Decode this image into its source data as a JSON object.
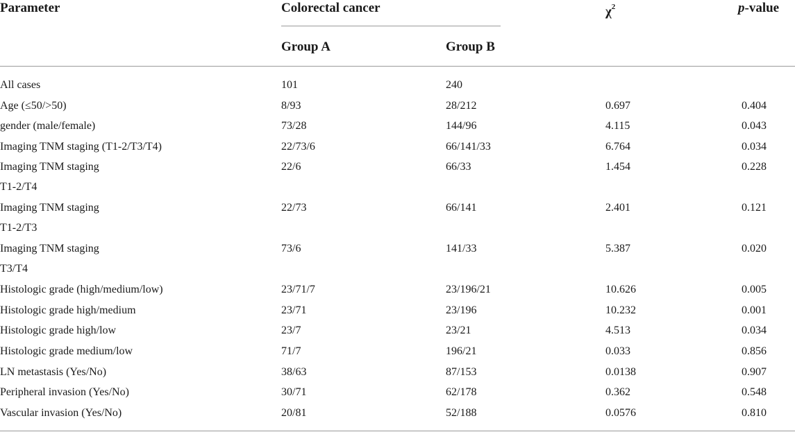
{
  "table": {
    "headers": {
      "parameter": "Parameter",
      "colorectal": "Colorectal cancer",
      "chi_symbol": "χ",
      "chi_sup": "2",
      "p_italic": "p",
      "p_rest": "-value",
      "group_a": "Group A",
      "group_b": "Group B"
    },
    "rows": [
      {
        "param": "All cases",
        "cont": "",
        "a": "101",
        "b": "240",
        "chi": "",
        "p": ""
      },
      {
        "param": "Age (≤50/>50)",
        "cont": "",
        "a": "8/93",
        "b": "28/212",
        "chi": "0.697",
        "p": "0.404"
      },
      {
        "param": "gender (male/female)",
        "cont": "",
        "a": "73/28",
        "b": "144/96",
        "chi": "4.115",
        "p": "0.043"
      },
      {
        "param": "Imaging TNM staging (T1-2/T3/T4)",
        "cont": "",
        "a": "22/73/6",
        "b": "66/141/33",
        "chi": "6.764",
        "p": "0.034"
      },
      {
        "param": "Imaging TNM staging",
        "cont": "T1-2/T4",
        "a": "22/6",
        "b": "66/33",
        "chi": "1.454",
        "p": "0.228"
      },
      {
        "param": "Imaging TNM staging",
        "cont": "T1-2/T3",
        "a": "22/73",
        "b": "66/141",
        "chi": "2.401",
        "p": "0.121"
      },
      {
        "param": "Imaging TNM staging",
        "cont": "T3/T4",
        "a": "73/6",
        "b": "141/33",
        "chi": "5.387",
        "p": "0.020"
      },
      {
        "param": "Histologic grade (high/medium/low)",
        "cont": "",
        "a": "23/71/7",
        "b": "23/196/21",
        "chi": "10.626",
        "p": "0.005"
      },
      {
        "param": "Histologic grade high/medium",
        "cont": "",
        "a": "23/71",
        "b": "23/196",
        "chi": "10.232",
        "p": "0.001"
      },
      {
        "param": "Histologic grade high/low",
        "cont": "",
        "a": "23/7",
        "b": "23/21",
        "chi": "4.513",
        "p": "0.034"
      },
      {
        "param": "Histologic grade medium/low",
        "cont": "",
        "a": "71/7",
        "b": "196/21",
        "chi": "0.033",
        "p": "0.856"
      },
      {
        "param": "LN metastasis (Yes/No)",
        "cont": "",
        "a": "38/63",
        "b": "87/153",
        "chi": "0.0138",
        "p": "0.907"
      },
      {
        "param": "Peripheral invasion (Yes/No)",
        "cont": "",
        "a": "30/71",
        "b": "62/178",
        "chi": "0.362",
        "p": "0.548"
      },
      {
        "param": "Vascular invasion (Yes/No)",
        "cont": "",
        "a": "20/81",
        "b": "52/188",
        "chi": "0.0576",
        "p": "0.810"
      }
    ]
  }
}
